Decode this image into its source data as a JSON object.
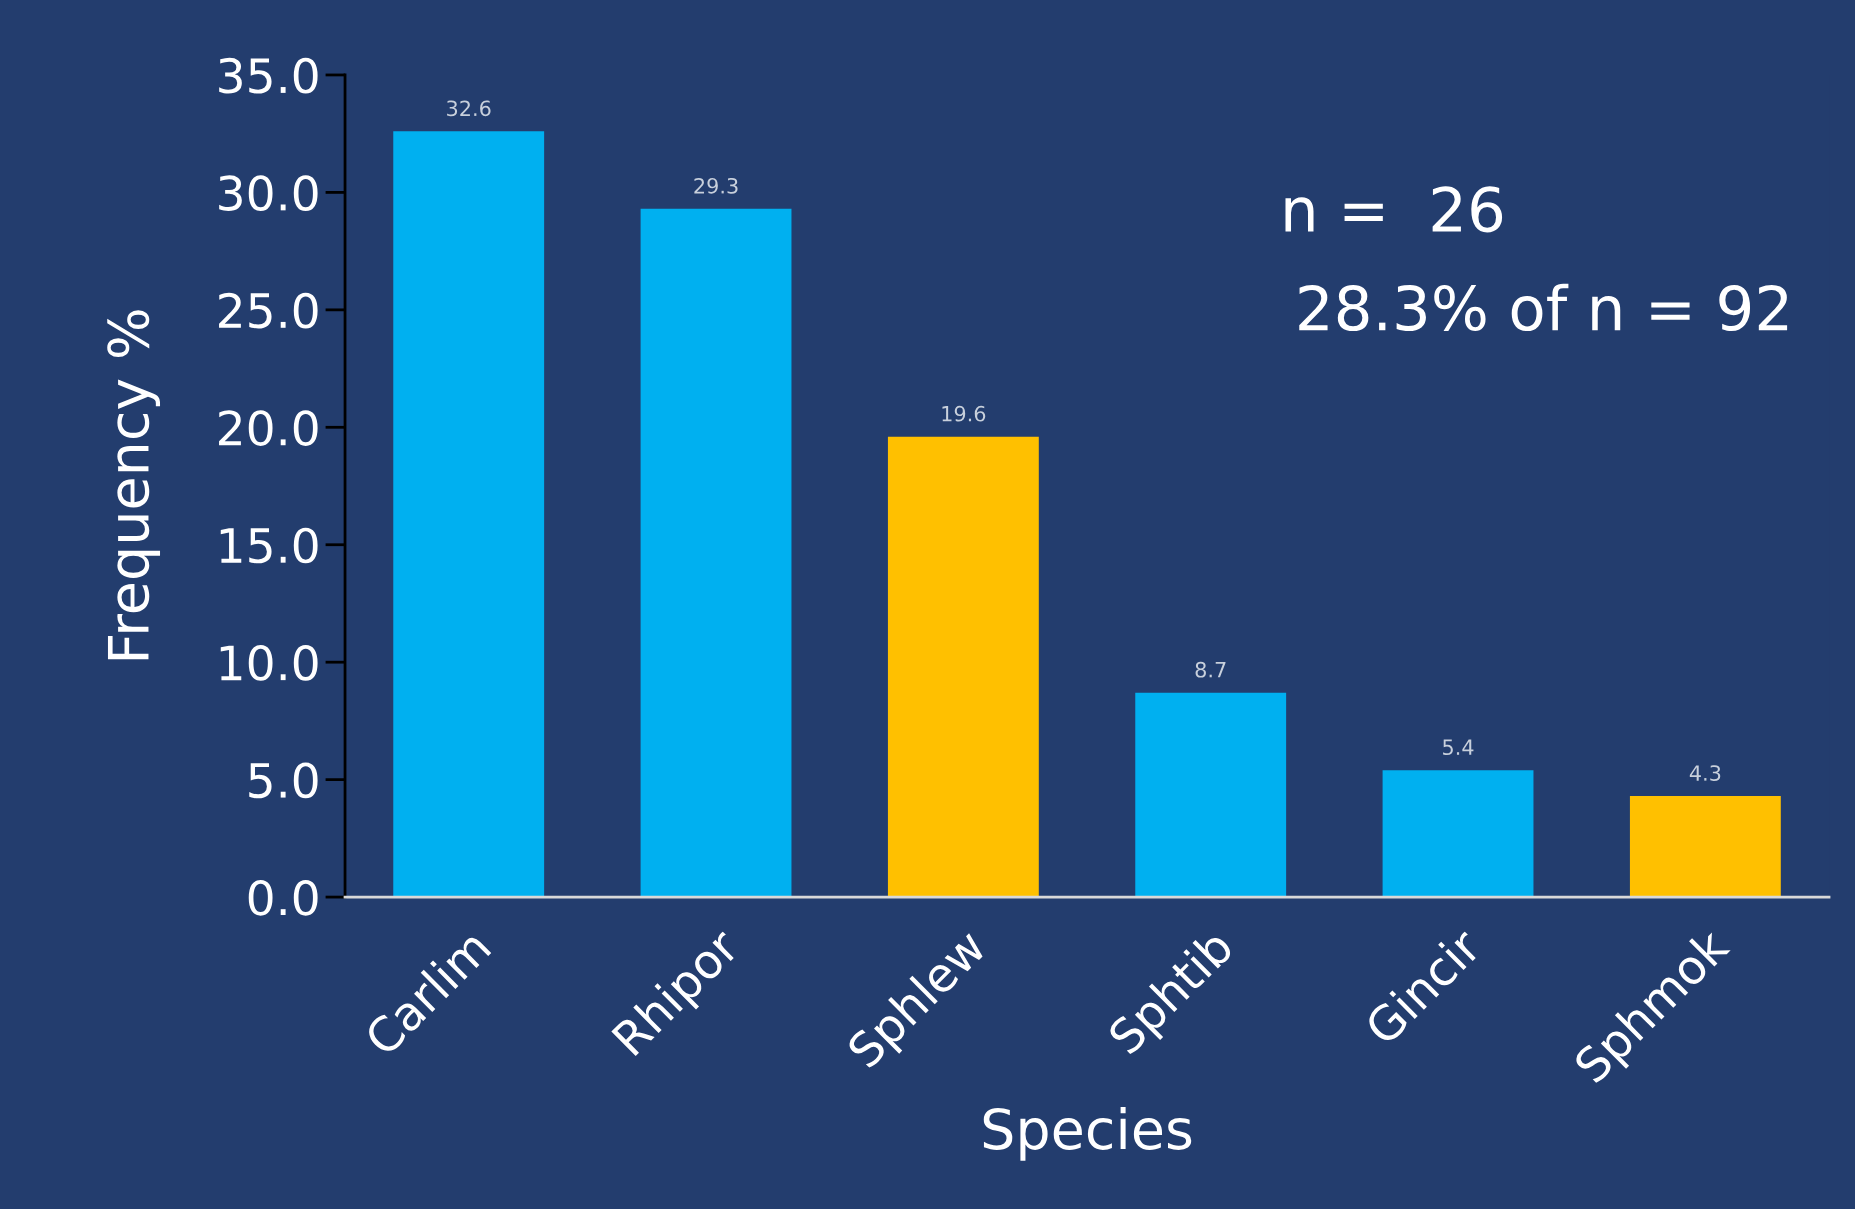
{
  "chart_data": {
    "type": "bar",
    "xlabel": "Species",
    "ylabel": "Frequency %",
    "categories": [
      "Carlim",
      "Rhipor",
      "Sphlew",
      "Sphtib",
      "Gincir",
      "Sphmok"
    ],
    "values": [
      32.6,
      29.3,
      19.6,
      8.7,
      5.4,
      4.3
    ],
    "colors": [
      "#00b0f0",
      "#00b0f0",
      "#ffc000",
      "#00b0f0",
      "#00b0f0",
      "#ffc000"
    ],
    "ylim": [
      0,
      35
    ],
    "yticks": [
      {
        "value": 0,
        "label": "0.0"
      },
      {
        "value": 5,
        "label": "5.0"
      },
      {
        "value": 10,
        "label": "10.0"
      },
      {
        "value": 15,
        "label": "15.0"
      },
      {
        "value": 20,
        "label": "20.0"
      },
      {
        "value": 25,
        "label": "25.0"
      },
      {
        "value": 30,
        "label": "30.0"
      },
      {
        "value": 35,
        "label": "35.0"
      }
    ],
    "data_labels": true,
    "grid": false,
    "legend": false,
    "annotations": [
      "n =  26",
      "28.3% of n = 92"
    ]
  }
}
